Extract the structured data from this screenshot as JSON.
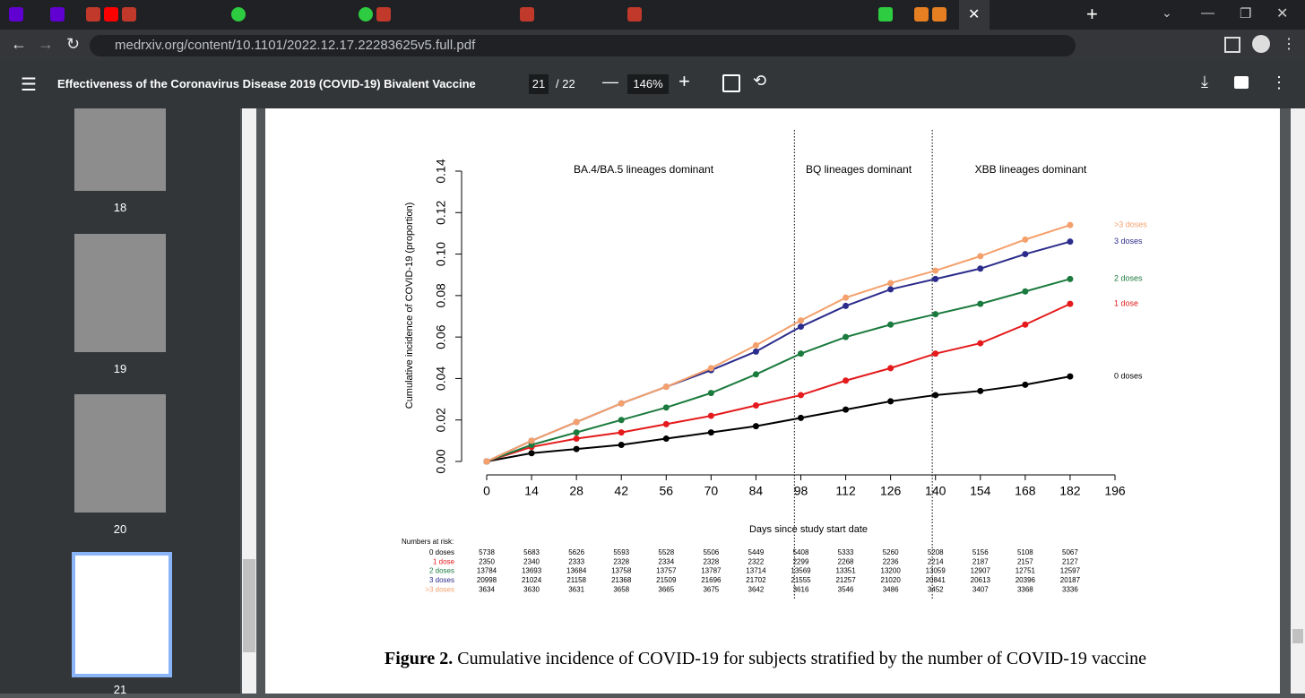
{
  "browser": {
    "url": "medrxiv.org/content/10.1101/2022.12.17.22283625v5.full.pdf"
  },
  "pdf_toolbar": {
    "title": "Effectiveness of the Coronavirus Disease 2019 (COVID-19) Bivalent Vaccine",
    "page": "21",
    "page_total": "/ 22",
    "zoom": "146%"
  },
  "thumbnails": [
    "18",
    "19",
    "20",
    "21"
  ],
  "chart_data": {
    "type": "line",
    "y_label": "Cumulative incidence of COVID-19 (proportion)",
    "x_label": "Days since study start date",
    "annotations": [
      "BA.4/BA.5 lineages dominant",
      "BQ lineages dominant",
      "XBB lineages dominant"
    ],
    "vlines": [
      96,
      139
    ],
    "x": [
      0,
      14,
      28,
      42,
      56,
      70,
      84,
      98,
      112,
      126,
      140,
      154,
      168,
      182
    ],
    "series": [
      {
        "name": "0 doses",
        "color": "#000000",
        "values": [
          0,
          0.004,
          0.006,
          0.008,
          0.011,
          0.014,
          0.017,
          0.021,
          0.025,
          0.029,
          0.032,
          0.034,
          0.037,
          0.041
        ]
      },
      {
        "name": "1 dose",
        "color": "#e41a1c",
        "values": [
          0,
          0.007,
          0.011,
          0.014,
          0.018,
          0.022,
          0.027,
          0.032,
          0.039,
          0.045,
          0.052,
          0.057,
          0.066,
          0.076
        ]
      },
      {
        "name": "2 doses",
        "color": "#1b7a3e",
        "values": [
          0,
          0.008,
          0.014,
          0.02,
          0.026,
          0.033,
          0.042,
          0.052,
          0.06,
          0.066,
          0.071,
          0.076,
          0.082,
          0.088
        ]
      },
      {
        "name": "3 doses",
        "color": "#2c2c8c",
        "values": [
          0,
          0.01,
          0.019,
          0.028,
          0.036,
          0.044,
          0.053,
          0.065,
          0.075,
          0.083,
          0.088,
          0.093,
          0.1,
          0.106
        ]
      },
      {
        "name": ">3 doses",
        "color": "#f4a06c",
        "values": [
          0,
          0.01,
          0.019,
          0.028,
          0.036,
          0.045,
          0.056,
          0.068,
          0.079,
          0.086,
          0.092,
          0.099,
          0.107,
          0.114
        ]
      }
    ],
    "xlim": [
      0,
      196
    ],
    "xticks": [
      0,
      14,
      28,
      42,
      56,
      70,
      84,
      98,
      112,
      126,
      140,
      154,
      168,
      182,
      196
    ],
    "ylim": [
      0,
      0.14
    ],
    "yticks": [
      {
        "value": 0,
        "label": "0.00"
      },
      0.02,
      0.04,
      0.06,
      0.08,
      {
        "value": 0.1,
        "label": "0.10"
      },
      0.12,
      0.14
    ]
  },
  "risk_table": {
    "title": "Numbers at risk:",
    "rows": [
      {
        "label": "0 doses",
        "values": [
          5738,
          5683,
          5626,
          5593,
          5528,
          5506,
          5449,
          5408,
          5333,
          5260,
          5208,
          5156,
          5108,
          5067
        ]
      },
      {
        "label": "1 dose",
        "values": [
          2350,
          2340,
          2333,
          2328,
          2334,
          2328,
          2322,
          2299,
          2268,
          2236,
          2214,
          2187,
          2157,
          2127
        ]
      },
      {
        "label": "2 doses",
        "values": [
          13784,
          13693,
          13684,
          13758,
          13757,
          13787,
          13714,
          13569,
          13351,
          13200,
          13059,
          12907,
          12751,
          12597
        ]
      },
      {
        "label": "3 doses",
        "values": [
          20998,
          21024,
          21158,
          21368,
          21509,
          21696,
          21702,
          21555,
          21257,
          21020,
          20841,
          20613,
          20396,
          20187
        ]
      },
      {
        "label": ">3 doses",
        "values": [
          3634,
          3630,
          3631,
          3658,
          3665,
          3675,
          3642,
          3616,
          3546,
          3486,
          3452,
          3407,
          3368,
          3336
        ]
      }
    ]
  },
  "caption": {
    "label": "Figure 2.",
    "text": "Cumulative incidence of COVID-19 for subjects stratified by the number of COVID-19 vaccine"
  }
}
